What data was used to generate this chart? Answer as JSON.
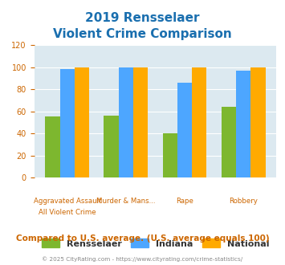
{
  "title_line1": "2019 Rensselaer",
  "title_line2": "Violent Crime Comparison",
  "series": {
    "Rensselaer": [
      55,
      56,
      40,
      64
    ],
    "Indiana": [
      98,
      100,
      86,
      97
    ],
    "National": [
      100,
      100,
      100,
      100
    ]
  },
  "colors": {
    "Rensselaer": "#7db72f",
    "Indiana": "#4da6ff",
    "National": "#ffaa00"
  },
  "top_labels": [
    "Aggravated Assault",
    "",
    "",
    ""
  ],
  "bot_labels": [
    "All Violent Crime",
    "Murder & Mans...",
    "Rape",
    "Robbery"
  ],
  "ylim": [
    0,
    120
  ],
  "yticks": [
    0,
    20,
    40,
    60,
    80,
    100,
    120
  ],
  "title_color": "#1a6faf",
  "background_color": "#dce9f0",
  "footer_text": "Compared to U.S. average. (U.S. average equals 100)",
  "footer_color": "#cc6600",
  "copyright_text": "© 2025 CityRating.com - https://www.cityrating.com/crime-statistics/",
  "copyright_color": "#888888",
  "tick_color": "#cc6600",
  "bar_width": 0.25
}
